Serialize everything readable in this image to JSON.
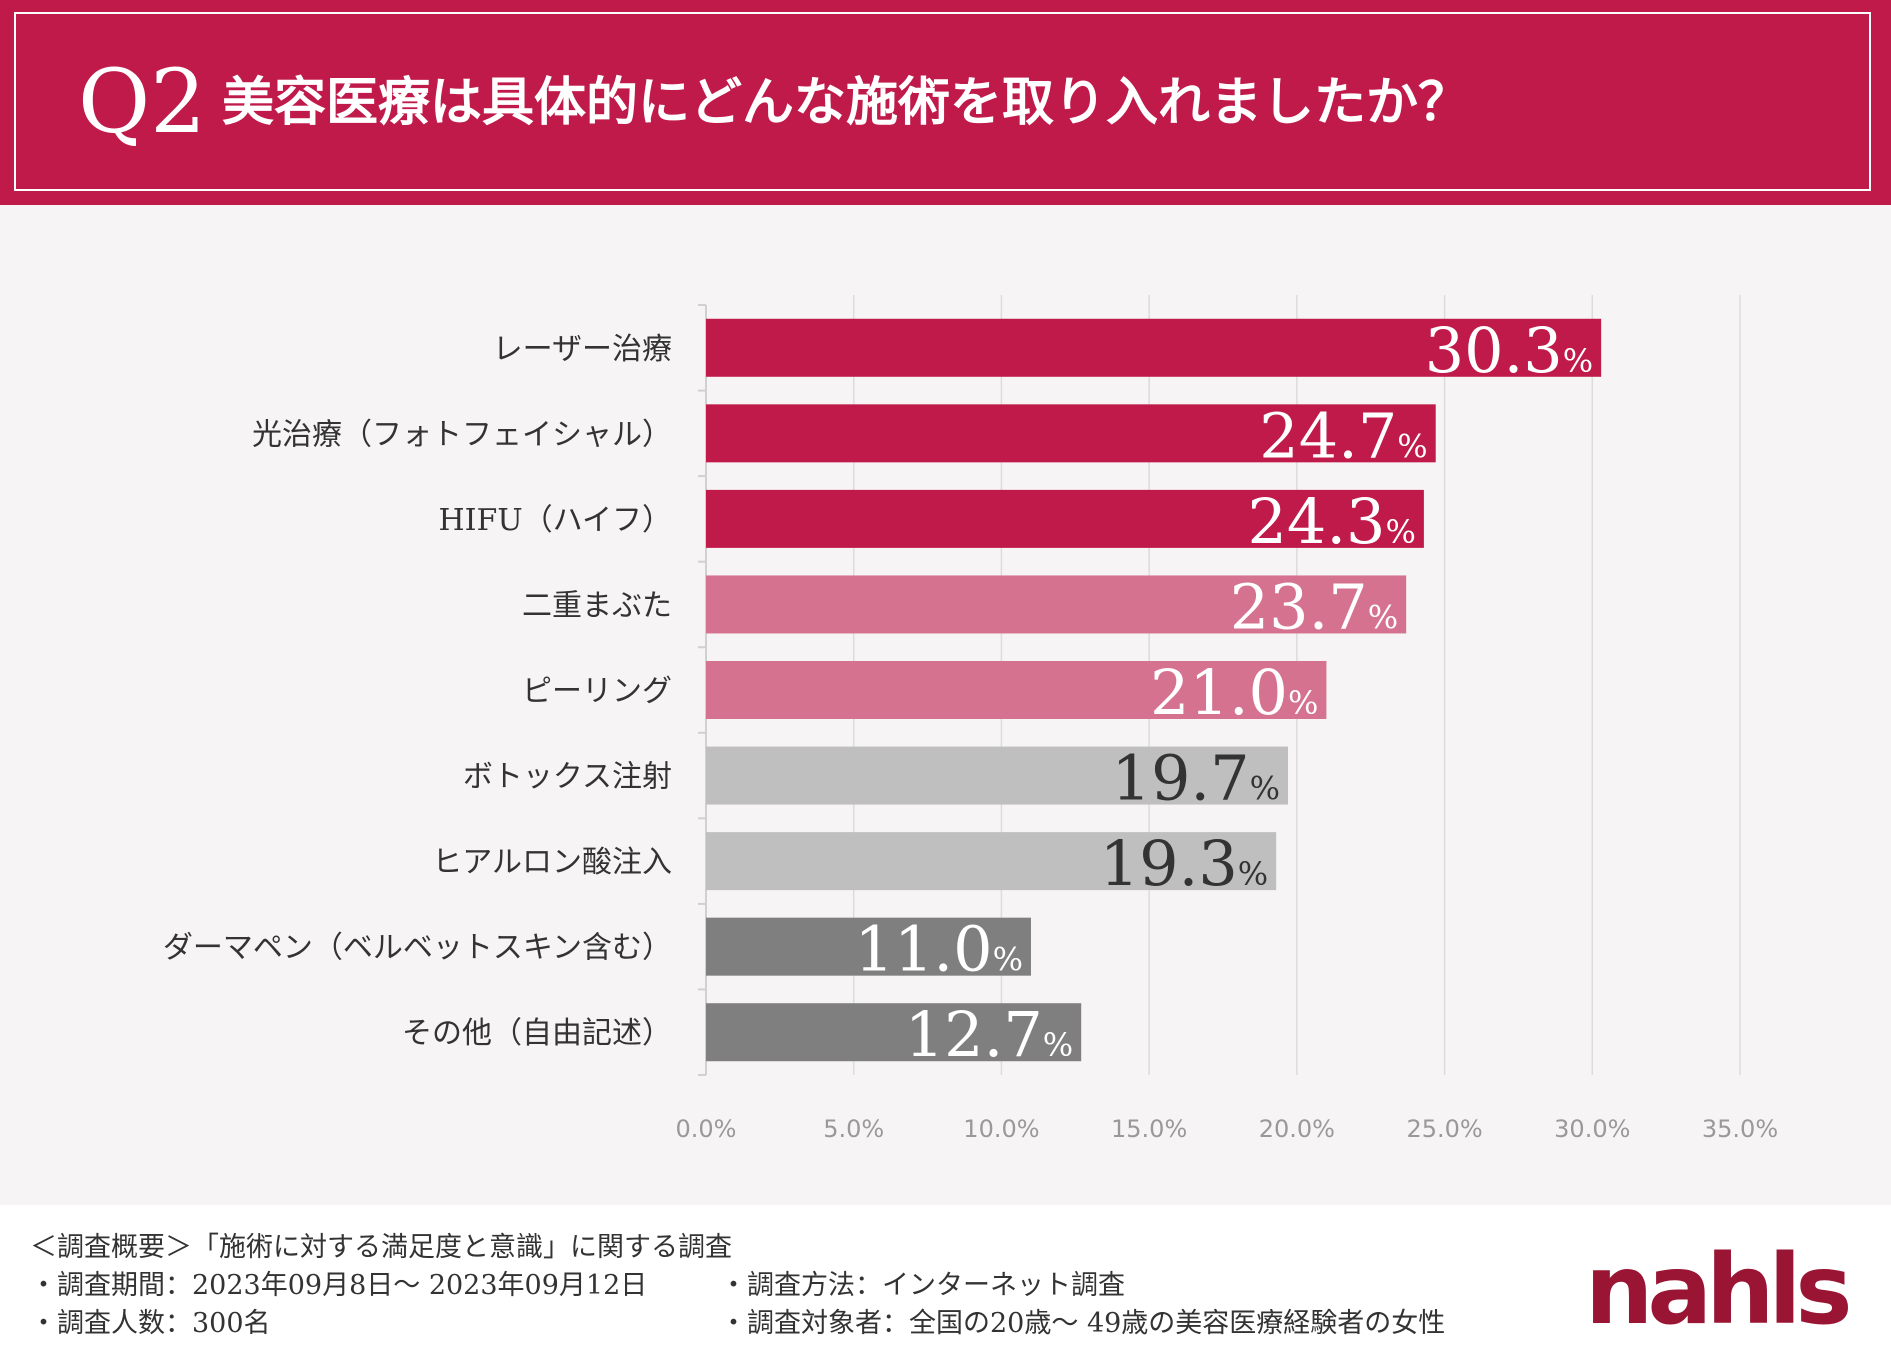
{
  "header": {
    "question_number": "Q2",
    "title": "美容医療は具体的にどんな施術を取り入れましたか？"
  },
  "chart_data": {
    "type": "bar",
    "orientation": "horizontal",
    "title": "",
    "xlabel": "",
    "ylabel": "",
    "categories": [
      "レーザー治療",
      "光治療（フォトフェイシャル）",
      "HIFU（ハイフ）",
      "二重まぶた",
      "ピーリング",
      "ボトックス注射",
      "ヒアルロン酸注入",
      "ダーマペン（ベルベットスキン含む）",
      "その他（自由記述）"
    ],
    "values": [
      30.3,
      24.7,
      24.3,
      23.7,
      21.0,
      19.7,
      19.3,
      11.0,
      12.7
    ],
    "value_labels": [
      "30.3",
      "24.7",
      "24.3",
      "23.7",
      "21.0",
      "19.7",
      "19.3",
      "11.0",
      "12.7"
    ],
    "value_unit": "%",
    "bar_colors": [
      "#c01a4a",
      "#c01a4a",
      "#c01a4a",
      "#d5728f",
      "#d5728f",
      "#bfbfbf",
      "#bfbfbf",
      "#7f7f7f",
      "#7f7f7f"
    ],
    "label_colors": [
      "#ffffff",
      "#ffffff",
      "#ffffff",
      "#ffffff",
      "#ffffff",
      "#333333",
      "#333333",
      "#ffffff",
      "#ffffff"
    ],
    "xlim": [
      0,
      35
    ],
    "x_ticks": [
      "0.0%",
      "5.0%",
      "10.0%",
      "15.0%",
      "20.0%",
      "25.0%",
      "30.0%",
      "35.0%"
    ],
    "grid": true,
    "legend": "none"
  },
  "footer": {
    "summary": "＜調査概要＞「施術に対する満足度と意識」に関する調査",
    "period": "・調査期間：2023年09月8日～ 2023年09月12日",
    "count": "・調査人数：300名",
    "method": "・調査方法：インターネット調査",
    "target": "・調査対象者：全国の20歳～ 49歳の美容医療経験者の女性",
    "logo": "nahls"
  }
}
